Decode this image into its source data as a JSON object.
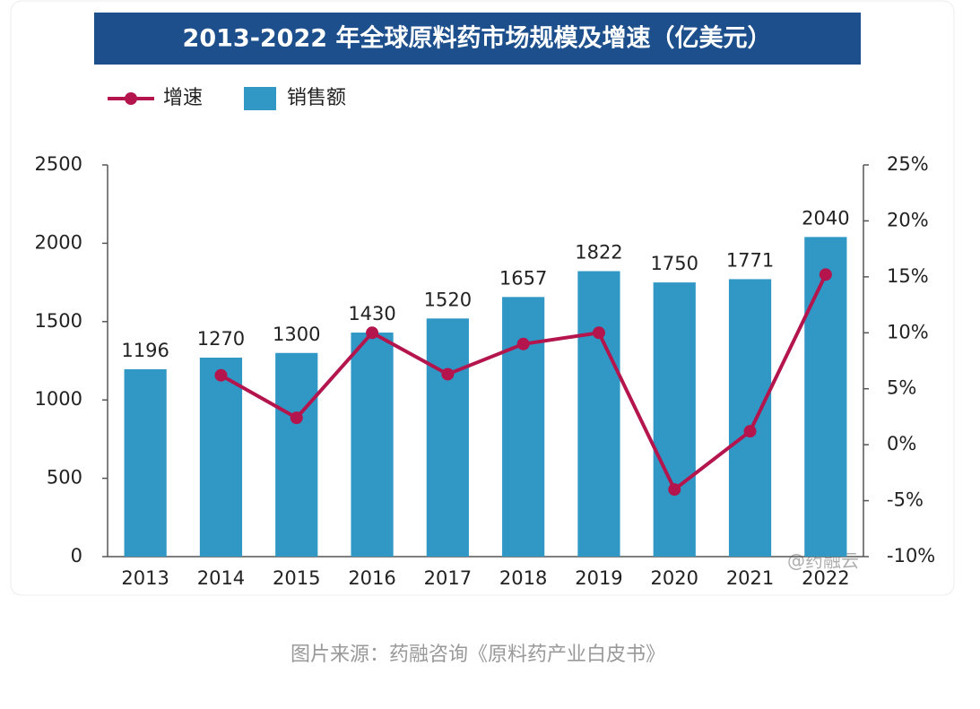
{
  "chart_data": {
    "type": "bar-line",
    "title": "2013-2022 年全球原料药市场规模及增速（亿美元）",
    "categories": [
      "2013",
      "2014",
      "2015",
      "2016",
      "2017",
      "2018",
      "2019",
      "2020",
      "2021",
      "2022"
    ],
    "series": [
      {
        "name": "销售额",
        "type": "bar",
        "color": "#3198c6",
        "values": [
          1196,
          1270,
          1300,
          1430,
          1520,
          1657,
          1822,
          1750,
          1771,
          2040
        ]
      },
      {
        "name": "增速",
        "type": "line",
        "axis": "y2",
        "color": "#b3154c",
        "values": [
          null,
          6.2,
          2.4,
          10.0,
          6.3,
          9.0,
          10.0,
          -4.0,
          1.2,
          15.2
        ]
      }
    ],
    "ylim": [
      0,
      2500
    ],
    "yticks": [
      0,
      500,
      1000,
      1500,
      2000,
      2500
    ],
    "y2lim": [
      -10,
      25
    ],
    "y2ticks": [
      {
        "value": -10,
        "label": "-10%"
      },
      {
        "value": -5,
        "label": "-5%"
      },
      {
        "value": 0,
        "label": "0%"
      },
      {
        "value": 5,
        "label": "5%"
      },
      {
        "value": 10,
        "label": "10%"
      },
      {
        "value": 15,
        "label": "15%"
      },
      {
        "value": 20,
        "label": "20%"
      },
      {
        "value": 25,
        "label": "25%"
      }
    ],
    "watermark": "@药融云",
    "caption": "图片来源：药融咨询《原料药产业白皮书》"
  }
}
